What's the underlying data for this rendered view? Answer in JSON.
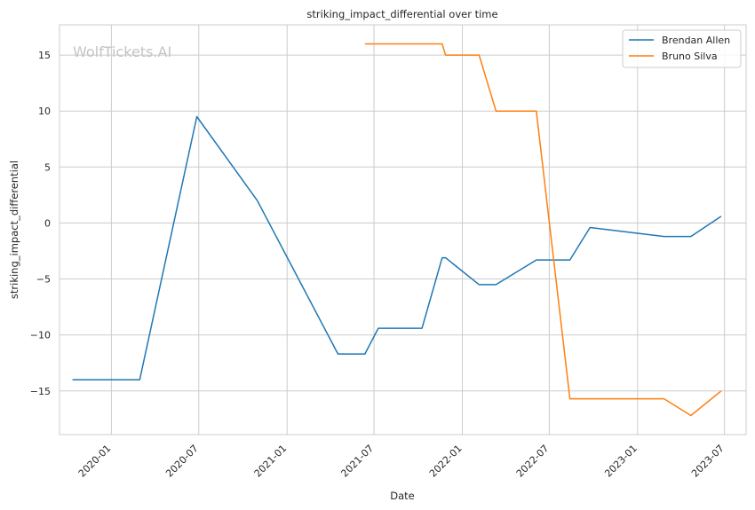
{
  "chart_data": {
    "type": "line",
    "title": "striking_impact_differential over time",
    "xlabel": "Date",
    "ylabel": "striking_impact_differential",
    "watermark": "WolfTickets.AI",
    "x_ticks": [
      "2020-01",
      "2020-07",
      "2021-01",
      "2021-07",
      "2022-01",
      "2022-07",
      "2023-01",
      "2023-07"
    ],
    "y_ticks": [
      -15,
      -10,
      -5,
      0,
      5,
      10,
      15
    ],
    "xlim": [
      "2019-09-15",
      "2023-08-15"
    ],
    "ylim": [
      -18.9,
      17.7
    ],
    "grid": true,
    "legend_position": "top-right",
    "series": [
      {
        "name": "Brendan Allen",
        "color": "#1f77b4",
        "points": [
          {
            "x": "2019-10-12",
            "y": -14.0
          },
          {
            "x": "2020-02-29",
            "y": -14.0
          },
          {
            "x": "2020-06-27",
            "y": 9.5
          },
          {
            "x": "2020-10-31",
            "y": 2.0
          },
          {
            "x": "2021-04-17",
            "y": -11.7
          },
          {
            "x": "2021-06-12",
            "y": -11.7
          },
          {
            "x": "2021-07-10",
            "y": -9.4
          },
          {
            "x": "2021-10-09",
            "y": -9.4
          },
          {
            "x": "2021-11-20",
            "y": -3.1
          },
          {
            "x": "2021-11-27",
            "y": -3.1
          },
          {
            "x": "2022-02-05",
            "y": -5.5
          },
          {
            "x": "2022-03-12",
            "y": -5.5
          },
          {
            "x": "2022-06-04",
            "y": -3.3
          },
          {
            "x": "2022-08-13",
            "y": -3.3
          },
          {
            "x": "2022-09-24",
            "y": -0.4
          },
          {
            "x": "2023-02-25",
            "y": -1.2
          },
          {
            "x": "2023-04-22",
            "y": -1.2
          },
          {
            "x": "2023-06-24",
            "y": 0.6
          }
        ]
      },
      {
        "name": "Bruno Silva",
        "color": "#ff7f0e",
        "points": [
          {
            "x": "2021-06-12",
            "y": 16.0
          },
          {
            "x": "2021-11-20",
            "y": 16.0
          },
          {
            "x": "2021-11-27",
            "y": 15.0
          },
          {
            "x": "2022-02-05",
            "y": 15.0
          },
          {
            "x": "2022-03-12",
            "y": 10.0
          },
          {
            "x": "2022-06-04",
            "y": 10.0
          },
          {
            "x": "2022-08-13",
            "y": -15.7
          },
          {
            "x": "2023-02-25",
            "y": -15.7
          },
          {
            "x": "2023-04-22",
            "y": -17.2
          },
          {
            "x": "2023-06-24",
            "y": -15.0
          }
        ]
      }
    ]
  }
}
